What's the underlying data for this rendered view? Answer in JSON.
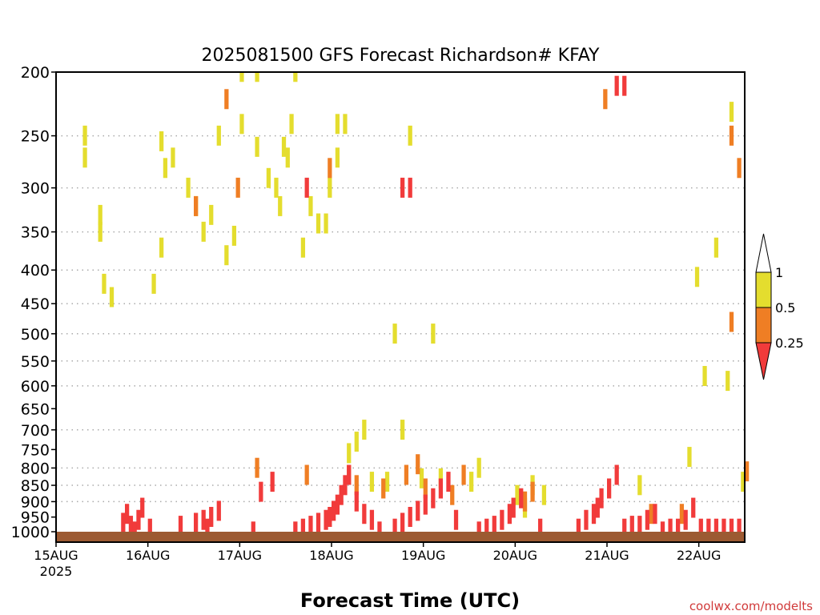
{
  "chart_data": {
    "type": "heatmap",
    "title": "2025081500 GFS Forecast Richardson# KFAY",
    "xlabel": "Forecast Time (UTC)",
    "ylabel": "",
    "credit": "coolwx.com/modelts",
    "y_scale": "log",
    "ylim": [
      1000,
      200
    ],
    "y_ticks": [
      "200",
      "250",
      "300",
      "350",
      "400",
      "450",
      "500",
      "550",
      "600",
      "650",
      "700",
      "750",
      "800",
      "850",
      "900",
      "950",
      "1000"
    ],
    "x_ticks": [
      {
        "label": "15AUG",
        "sublabel": "2025",
        "hour": 0
      },
      {
        "label": "16AUG",
        "hour": 24
      },
      {
        "label": "17AUG",
        "hour": 48
      },
      {
        "label": "18AUG",
        "hour": 72
      },
      {
        "label": "19AUG",
        "hour": 96
      },
      {
        "label": "20AUG",
        "hour": 120
      },
      {
        "label": "21AUG",
        "hour": 144
      },
      {
        "label": "22AUG",
        "hour": 168
      }
    ],
    "xlim_hours": [
      0,
      180
    ],
    "grid": "horizontal dotted at each pressure level",
    "legend": {
      "placement": "right",
      "levels": [
        "1",
        "0.5",
        "0.25"
      ],
      "colors": {
        "ri_0_25_to_0_5": "#ef7e24",
        "ri_0_5_to_1": "#e4dd2e",
        "ri_below_0_25": "#f13b3b",
        "ground": "#9c5a32"
      }
    },
    "series": [
      {
        "class": "ri_0_5_to_1",
        "cells": [
          [
            7,
            250
          ],
          [
            7,
            270
          ],
          [
            11,
            330
          ],
          [
            11,
            350
          ],
          [
            12,
            420
          ],
          [
            14,
            440
          ],
          [
            25,
            420
          ],
          [
            27,
            370
          ],
          [
            27,
            255
          ],
          [
            28,
            280
          ],
          [
            30,
            270
          ],
          [
            34,
            300
          ],
          [
            36,
            320
          ],
          [
            38,
            350
          ],
          [
            40,
            330
          ],
          [
            42,
            250
          ],
          [
            44,
            380
          ],
          [
            46,
            355
          ],
          [
            48,
            240
          ],
          [
            48,
            200
          ],
          [
            52,
            200
          ],
          [
            52,
            260
          ],
          [
            55,
            290
          ],
          [
            57,
            300
          ],
          [
            58,
            320
          ],
          [
            59,
            260
          ],
          [
            60,
            270
          ],
          [
            61,
            240
          ],
          [
            62,
            200
          ],
          [
            64,
            370
          ],
          [
            66,
            320
          ],
          [
            68,
            340
          ],
          [
            70,
            340
          ],
          [
            71,
            300
          ],
          [
            73,
            270
          ],
          [
            73,
            240
          ],
          [
            75,
            240
          ],
          [
            76,
            760
          ],
          [
            78,
            730
          ],
          [
            80,
            700
          ],
          [
            82,
            840
          ],
          [
            86,
            840
          ],
          [
            88,
            500
          ],
          [
            90,
            700
          ],
          [
            92,
            250
          ],
          [
            95,
            830
          ],
          [
            98,
            500
          ],
          [
            100,
            830
          ],
          [
            108,
            840
          ],
          [
            110,
            800
          ],
          [
            120,
            880
          ],
          [
            122,
            920
          ],
          [
            124,
            850
          ],
          [
            127,
            880
          ],
          [
            152,
            850
          ],
          [
            165,
            770
          ],
          [
            167,
            410
          ],
          [
            169,
            580
          ],
          [
            172,
            370
          ],
          [
            175,
            590
          ],
          [
            176,
            230
          ],
          [
            179,
            840
          ]
        ]
      },
      {
        "class": "ri_0_25_to_0_5",
        "cells": [
          [
            36,
            320
          ],
          [
            44,
            220
          ],
          [
            47,
            300
          ],
          [
            52,
            800
          ],
          [
            65,
            820
          ],
          [
            71,
            280
          ],
          [
            76,
            820
          ],
          [
            78,
            850
          ],
          [
            85,
            860
          ],
          [
            91,
            820
          ],
          [
            94,
            790
          ],
          [
            96,
            860
          ],
          [
            103,
            880
          ],
          [
            106,
            820
          ],
          [
            122,
            900
          ],
          [
            124,
            870
          ],
          [
            143,
            220
          ],
          [
            176,
            480
          ],
          [
            176,
            250
          ],
          [
            178,
            280
          ],
          [
            180,
            810
          ],
          [
            163,
            940
          ],
          [
            155,
            940
          ]
        ]
      },
      {
        "class": "ri_below_0_25",
        "cells": [
          [
            17,
            970
          ],
          [
            18,
            940
          ],
          [
            19,
            980
          ],
          [
            20,
            1000
          ],
          [
            21,
            960
          ],
          [
            22,
            920
          ],
          [
            24,
            990
          ],
          [
            32,
            980
          ],
          [
            36,
            970
          ],
          [
            38,
            960
          ],
          [
            39,
            990
          ],
          [
            40,
            950
          ],
          [
            42,
            930
          ],
          [
            51,
            1000
          ],
          [
            53,
            870
          ],
          [
            56,
            840
          ],
          [
            62,
            1000
          ],
          [
            64,
            990
          ],
          [
            66,
            980
          ],
          [
            68,
            970
          ],
          [
            70,
            960
          ],
          [
            71,
            950
          ],
          [
            72,
            930
          ],
          [
            73,
            910
          ],
          [
            74,
            880
          ],
          [
            75,
            850
          ],
          [
            76,
            820
          ],
          [
            78,
            900
          ],
          [
            80,
            940
          ],
          [
            82,
            960
          ],
          [
            84,
            1000
          ],
          [
            88,
            990
          ],
          [
            90,
            970
          ],
          [
            92,
            950
          ],
          [
            94,
            930
          ],
          [
            96,
            910
          ],
          [
            98,
            890
          ],
          [
            100,
            860
          ],
          [
            102,
            840
          ],
          [
            104,
            960
          ],
          [
            110,
            1000
          ],
          [
            112,
            990
          ],
          [
            114,
            980
          ],
          [
            116,
            960
          ],
          [
            118,
            940
          ],
          [
            119,
            920
          ],
          [
            121,
            890
          ],
          [
            126,
            990
          ],
          [
            136,
            990
          ],
          [
            138,
            960
          ],
          [
            140,
            940
          ],
          [
            141,
            920
          ],
          [
            142,
            890
          ],
          [
            144,
            860
          ],
          [
            146,
            820
          ],
          [
            148,
            990
          ],
          [
            150,
            980
          ],
          [
            152,
            980
          ],
          [
            154,
            960
          ],
          [
            156,
            940
          ],
          [
            158,
            1000
          ],
          [
            160,
            990
          ],
          [
            162,
            990
          ],
          [
            164,
            960
          ],
          [
            166,
            920
          ],
          [
            168,
            990
          ],
          [
            170,
            990
          ],
          [
            172,
            990
          ],
          [
            174,
            990
          ],
          [
            176,
            990
          ],
          [
            178,
            990
          ],
          [
            65,
            300
          ],
          [
            90,
            300
          ],
          [
            92,
            300
          ],
          [
            146,
            210
          ],
          [
            148,
            210
          ]
        ]
      }
    ]
  }
}
